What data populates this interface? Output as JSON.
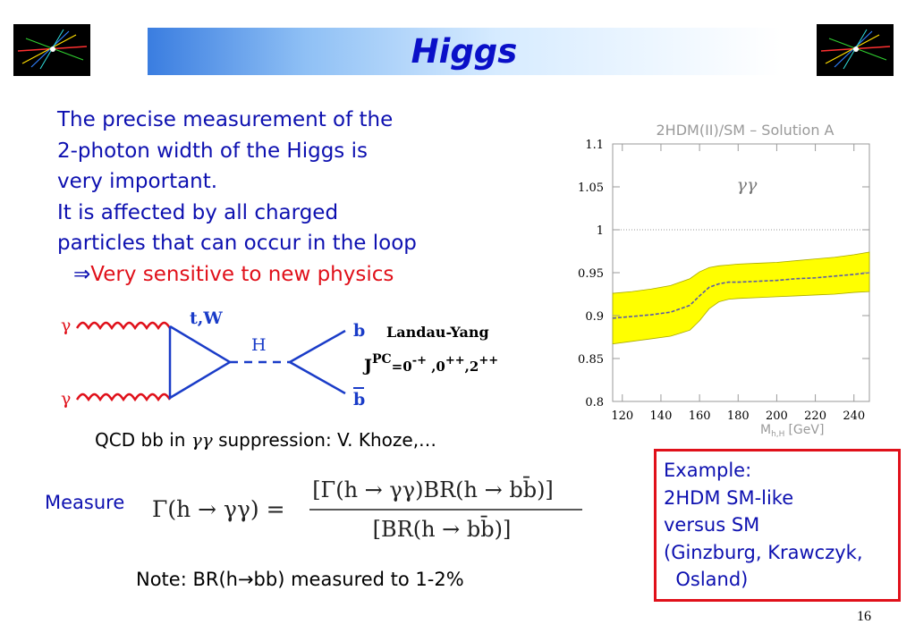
{
  "slide": {
    "title": "Higgs",
    "page_number": "16"
  },
  "intro": {
    "lines": [
      "The precise measurement of the",
      "2-photon width of the Higgs is",
      "very important.",
      "It is affected by all charged",
      "particles that can occur in the loop"
    ],
    "arrow": "⇒",
    "conclusion": "Very sensitive to new physics"
  },
  "feynman": {
    "gamma_top": "γ",
    "gamma_bottom": "γ",
    "loop_label": "t,W",
    "higgs_label": "H",
    "b_label": "b",
    "bbar_label": "b",
    "ly_title": "Landau-Yang",
    "ly_j": "J",
    "ly_pc": "PC",
    "ly_eq": "=0",
    "ly_s1": "-+",
    "ly_c1": " ,0",
    "ly_s2": "++",
    "ly_c2": ",2",
    "ly_s3": "++"
  },
  "qcd": {
    "prefix": "QCD bb in ",
    "gg": "γγ",
    "suffix": " suppression: V. Khoze,…"
  },
  "measure": {
    "label": "Measure",
    "lhs": "Γ(h → γγ) =",
    "numerator": "[Γ(h → γγ)BR(h → bb̄)]",
    "denominator": "[BR(h → bb̄)]"
  },
  "note": "Note: BR(h→bb) measured to 1-2%",
  "example": {
    "lines": [
      "Example:",
      "2HDM SM-like",
      "versus SM",
      "(Ginzburg, Krawczyk,",
      "  Osland)"
    ]
  },
  "colors": {
    "title_text": "#0a10c8",
    "body_text": "#0d10b0",
    "accent_red": "#e0101a",
    "band_fill": "#ffff00",
    "feynman_blue": "#1a3cc8",
    "photon_red": "#e0101a"
  },
  "chart_data": {
    "type": "area",
    "title": "2HDM(II)/SM – Solution A",
    "xlabel": "M",
    "xlabel_sub": "h,H",
    "xlabel_unit": "[GeV]",
    "ylabel": "",
    "annotation": "γγ",
    "xlim": [
      115,
      248
    ],
    "ylim": [
      0.8,
      1.1
    ],
    "xticks": [
      120,
      140,
      160,
      180,
      200,
      220,
      240
    ],
    "yticks": [
      0.8,
      0.85,
      0.9,
      0.95,
      1,
      1.05,
      1.1
    ],
    "ytick_labels": [
      "0.8",
      "0.85",
      "0.9",
      "0.95",
      "1",
      "1.05",
      "1.1"
    ],
    "reference_line": 1.0,
    "x": [
      115,
      125,
      135,
      145,
      155,
      160,
      165,
      170,
      175,
      180,
      190,
      200,
      210,
      220,
      230,
      240,
      248
    ],
    "series": [
      {
        "name": "central",
        "values": [
          0.897,
          0.899,
          0.901,
          0.904,
          0.912,
          0.923,
          0.933,
          0.937,
          0.939,
          0.939,
          0.94,
          0.941,
          0.943,
          0.944,
          0.946,
          0.948,
          0.95
        ]
      },
      {
        "name": "upper",
        "values": [
          0.926,
          0.928,
          0.931,
          0.935,
          0.943,
          0.951,
          0.956,
          0.958,
          0.959,
          0.96,
          0.961,
          0.962,
          0.964,
          0.966,
          0.968,
          0.971,
          0.974
        ]
      },
      {
        "name": "lower",
        "values": [
          0.867,
          0.87,
          0.873,
          0.876,
          0.883,
          0.894,
          0.908,
          0.916,
          0.919,
          0.92,
          0.921,
          0.922,
          0.923,
          0.924,
          0.925,
          0.927,
          0.928
        ]
      }
    ],
    "grid": false,
    "legend": "none"
  }
}
